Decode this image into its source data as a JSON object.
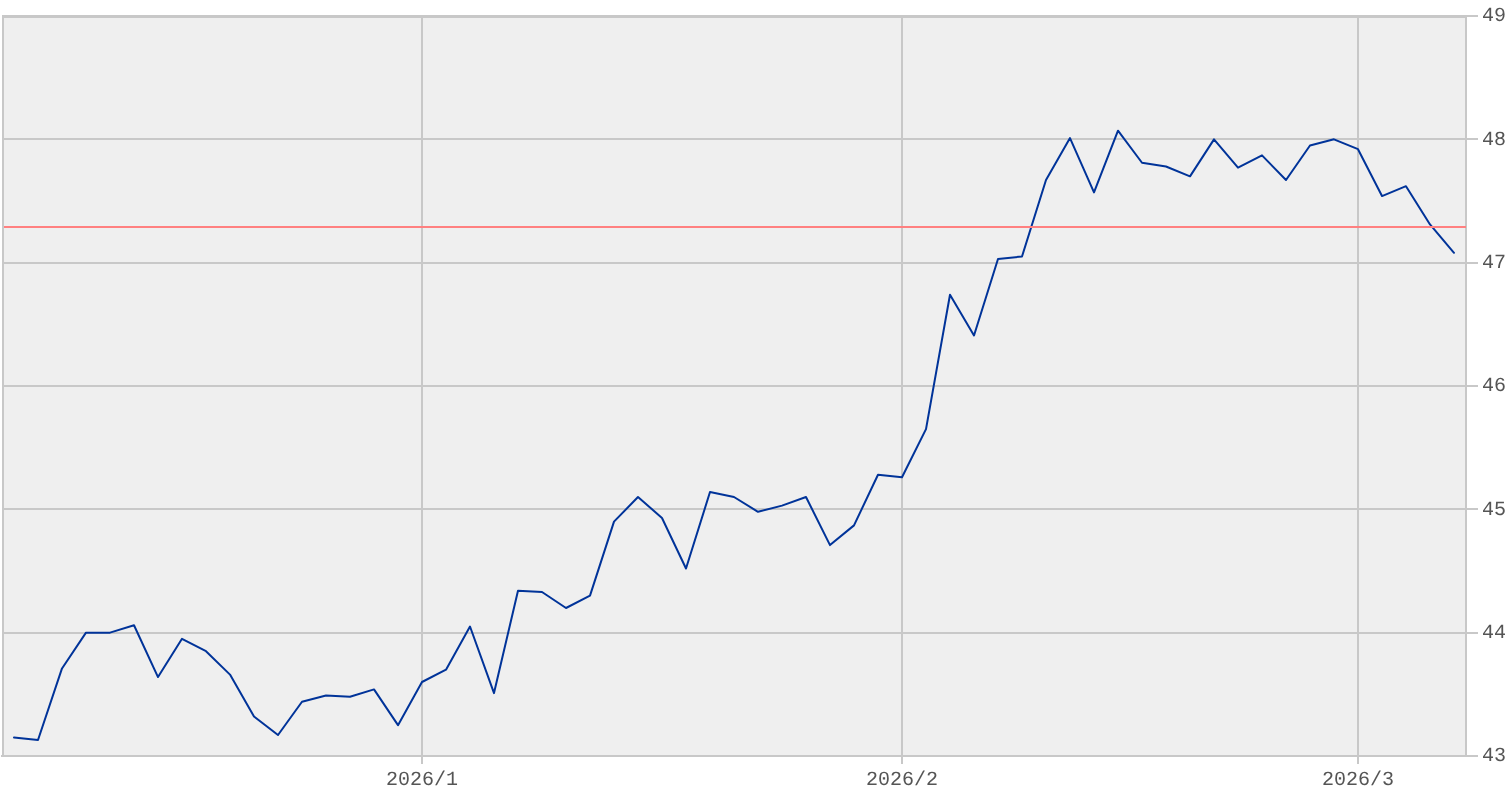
{
  "chart_data": {
    "type": "line",
    "categories": [
      null,
      null,
      null,
      null,
      null,
      null,
      null,
      null,
      null,
      null,
      null,
      null,
      null,
      null,
      null,
      null,
      null,
      "2026/1",
      null,
      null,
      null,
      null,
      null,
      null,
      null,
      null,
      null,
      null,
      null,
      null,
      null,
      null,
      null,
      null,
      null,
      null,
      null,
      "2026/2",
      null,
      null,
      null,
      null,
      null,
      null,
      null,
      null,
      null,
      null,
      null,
      null,
      null,
      null,
      null,
      null,
      null,
      null,
      "2026/3",
      null,
      null,
      null,
      null
    ],
    "series": [
      {
        "color": "#003399",
        "values": [
          43.15,
          43.13,
          43.71,
          44.0,
          44.0,
          44.06,
          43.64,
          43.95,
          43.85,
          43.66,
          43.32,
          43.17,
          43.44,
          43.49,
          43.48,
          43.54,
          43.25,
          43.6,
          43.7,
          44.05,
          43.51,
          44.34,
          44.33,
          44.2,
          44.3,
          44.9,
          45.1,
          44.93,
          44.52,
          45.14,
          45.1,
          44.98,
          45.03,
          45.1,
          44.71,
          44.87,
          45.28,
          45.26,
          45.65,
          46.74,
          46.41,
          47.03,
          47.05,
          47.67,
          48.01,
          47.57,
          48.07,
          47.81,
          47.78,
          47.7,
          48.0,
          47.77,
          47.87,
          47.67,
          47.95,
          48.0,
          47.92,
          47.54,
          47.62,
          47.31,
          47.08
        ]
      }
    ],
    "ylim": [
      43,
      49
    ],
    "yticks": [
      43,
      44,
      45,
      46,
      47,
      48,
      49
    ],
    "ref_lines": [
      {
        "axis": "y",
        "value": 47.3,
        "color": "#ff8080"
      }
    ],
    "grid": true,
    "marker": "none"
  }
}
